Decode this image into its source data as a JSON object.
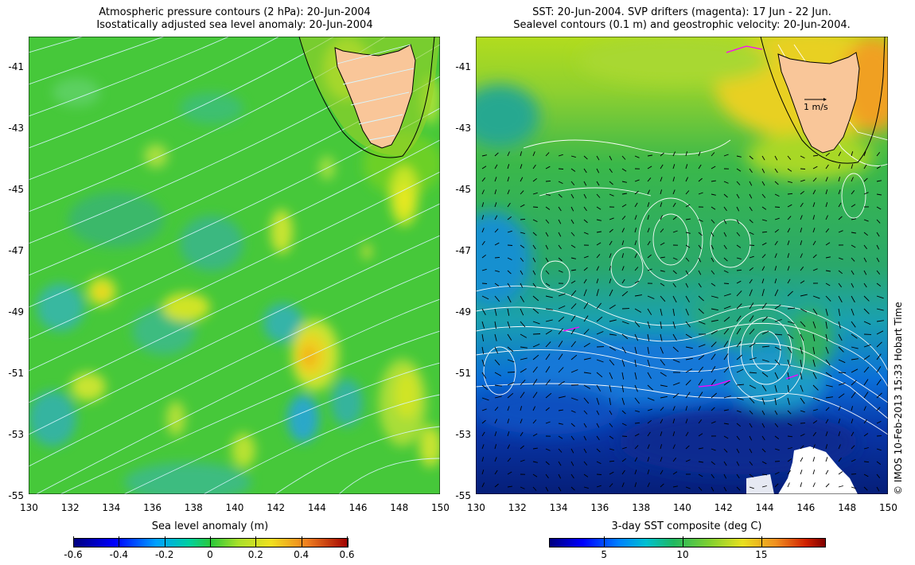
{
  "left_panel": {
    "title_line1": "Atmospheric pressure contours (2 hPa): 20-Jun-2004",
    "title_line2": "Isostatically adjusted sea level anomaly: 20-Jun-2004",
    "y_ticks": [
      "-41",
      "-43",
      "-45",
      "-47",
      "-49",
      "-51",
      "-53",
      "-55"
    ],
    "x_ticks": [
      "130",
      "132",
      "134",
      "136",
      "138",
      "140",
      "142",
      "144",
      "146",
      "148",
      "150"
    ],
    "colorbar": {
      "label": "Sea level anomaly (m)",
      "ticks": [
        "-0.6",
        "-0.4",
        "-0.2",
        "0",
        "0.2",
        "0.4",
        "0.6"
      ],
      "range": [
        -0.6,
        0.6
      ]
    }
  },
  "right_panel": {
    "title_line1": "SST: 20-Jun-2004. SVP drifters (magenta): 17 Jun - 22 Jun.",
    "title_line2": "Sealevel contours (0.1 m) and geostrophic velocity: 20-Jun-2004.",
    "y_ticks": [
      "-41",
      "-43",
      "-45",
      "-47",
      "-49",
      "-51",
      "-53",
      "-55"
    ],
    "x_ticks": [
      "130",
      "132",
      "134",
      "136",
      "138",
      "140",
      "142",
      "144",
      "146",
      "148",
      "150"
    ],
    "scale_arrow_label": "1 m/s",
    "colorbar": {
      "label": "3-day SST composite (deg C)",
      "ticks": [
        "5",
        "10",
        "15"
      ],
      "range": [
        1.5,
        19
      ]
    }
  },
  "copyright": "© IMOS 10-Feb-2013 15:33 Hobart Time",
  "colors": {
    "land": "#f9c699",
    "ssh_background": "#44cc33",
    "drifter": "#ff00ff",
    "contours": "#ffffff"
  }
}
